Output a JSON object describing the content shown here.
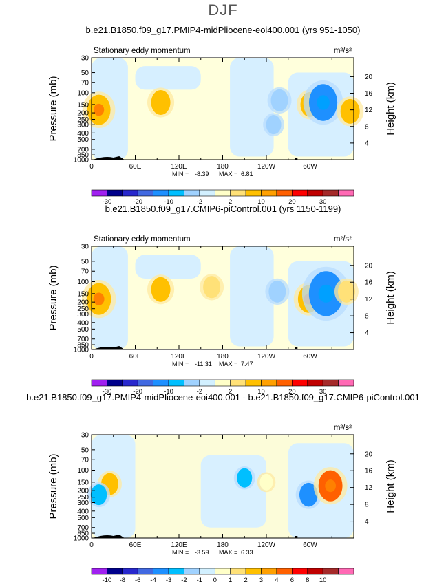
{
  "figure_title": "DJF",
  "chart_data": [
    {
      "type": "contour",
      "title": "b.e21.B1850.f09_g17.PMIP4-midPliocene-eoi400.001 (yrs 951-1050)",
      "left_label": "Stationary eddy momentum",
      "units": "m²/s²",
      "ylabel": "Pressure (mb)",
      "ylabel_right": "Height (km)",
      "x_ticks": [
        "0",
        "60E",
        "120E",
        "180",
        "120W",
        "60W"
      ],
      "pressure_ticks": [
        "30",
        "50",
        "70",
        "100",
        "150",
        "200",
        "250",
        "300",
        "400",
        "500",
        "700",
        "850",
        "1000"
      ],
      "height_ticks": [
        "20",
        "16",
        "12",
        "8",
        "4"
      ],
      "min_label": "MIN =",
      "min": "-8.39",
      "max_label": "MAX =",
      "max": "6.81",
      "colorbar_labels": [
        "-30",
        "-20",
        "-10",
        "-2",
        "2",
        "10",
        "20",
        "30"
      ],
      "colorbar_colors": [
        "#a020f0",
        "#00008b",
        "#2828cd",
        "#4169e1",
        "#1e90ff",
        "#00bfff",
        "#a0d2ff",
        "#d2f0ff",
        "#ffffc8",
        "#ffe178",
        "#ffc000",
        "#ffa000",
        "#ff6000",
        "#ff0000",
        "#c00000",
        "#a52a2a",
        "#ff69b4"
      ],
      "features": [
        {
          "lon": 10,
          "p": 180,
          "value": 6.0
        },
        {
          "lon": 95,
          "p": 140,
          "value": 4.0
        },
        {
          "lon": 258,
          "p": 130,
          "value": -3.0
        },
        {
          "lon": 300,
          "p": 150,
          "value": 4.0
        },
        {
          "lon": 318,
          "p": 140,
          "value": -8.4
        },
        {
          "lon": 355,
          "p": 190,
          "value": 4.0
        },
        {
          "lon": 250,
          "p": 300,
          "value": -2.0
        }
      ]
    },
    {
      "type": "contour",
      "title": "b.e21.B1850.f09_g17.CMIP6-piControl.001 (yrs 1150-1199)",
      "left_label": "Stationary eddy momentum",
      "units": "m²/s²",
      "ylabel": "Pressure (mb)",
      "ylabel_right": "Height (km)",
      "x_ticks": [
        "0",
        "60E",
        "120E",
        "180",
        "120W",
        "60W"
      ],
      "pressure_ticks": [
        "30",
        "50",
        "70",
        "100",
        "150",
        "200",
        "250",
        "300",
        "400",
        "500",
        "700",
        "850",
        "1000"
      ],
      "height_ticks": [
        "20",
        "16",
        "12",
        "8",
        "4"
      ],
      "min_label": "MIN =",
      "min": "-11.31",
      "max_label": "MAX =",
      "max": "7.47",
      "colorbar_labels": [
        "-30",
        "-20",
        "-10",
        "-2",
        "2",
        "10",
        "20",
        "30"
      ],
      "colorbar_colors": [
        "#a020f0",
        "#00008b",
        "#2828cd",
        "#4169e1",
        "#1e90ff",
        "#00bfff",
        "#a0d2ff",
        "#d2f0ff",
        "#ffffc8",
        "#ffe178",
        "#ffc000",
        "#ffa000",
        "#ff6000",
        "#ff0000",
        "#c00000",
        "#a52a2a",
        "#ff69b4"
      ],
      "features": [
        {
          "lon": 10,
          "p": 180,
          "value": 6.5
        },
        {
          "lon": 95,
          "p": 130,
          "value": 4.0
        },
        {
          "lon": 165,
          "p": 120,
          "value": 3.0
        },
        {
          "lon": 255,
          "p": 140,
          "value": -3.0
        },
        {
          "lon": 298,
          "p": 180,
          "value": 5.0
        },
        {
          "lon": 322,
          "p": 150,
          "value": -11.3
        },
        {
          "lon": 350,
          "p": 140,
          "value": 3.0
        }
      ]
    },
    {
      "type": "contour",
      "title": "b.e21.B1850.f09_g17.PMIP4-midPliocene-eoi400.001 - b.e21.B1850.f09_g17.CMIP6-piControl.001",
      "left_label": "",
      "units": "m²/s²",
      "ylabel": "Pressure (mb)",
      "ylabel_right": "Height (km)",
      "x_ticks": [
        "0",
        "60E",
        "120E",
        "180",
        "120W",
        "60W"
      ],
      "pressure_ticks": [
        "30",
        "50",
        "70",
        "100",
        "150",
        "200",
        "250",
        "300",
        "400",
        "500",
        "700",
        "850",
        "1000"
      ],
      "height_ticks": [
        "20",
        "16",
        "12",
        "8",
        "4"
      ],
      "min_label": "MIN =",
      "min": "-3.59",
      "max_label": "MAX =",
      "max": "6.33",
      "colorbar_labels": [
        "-10",
        "-8",
        "-6",
        "-4",
        "-3",
        "-2",
        "-1",
        "0",
        "1",
        "2",
        "3",
        "4",
        "6",
        "8",
        "10"
      ],
      "colorbar_colors": [
        "#a020f0",
        "#00008b",
        "#2828cd",
        "#4169e1",
        "#1e90ff",
        "#00bfff",
        "#a0d2ff",
        "#d2f0ff",
        "#ffffc8",
        "#ffe178",
        "#ffc000",
        "#ffa000",
        "#ff6000",
        "#ff0000",
        "#c00000",
        "#a52a2a",
        "#ff69b4"
      ],
      "features": [
        {
          "lon": 25,
          "p": 160,
          "value": 3.0
        },
        {
          "lon": 10,
          "p": 230,
          "value": -2.5
        },
        {
          "lon": 210,
          "p": 130,
          "value": -2.0
        },
        {
          "lon": 298,
          "p": 230,
          "value": -3.6
        },
        {
          "lon": 328,
          "p": 170,
          "value": 6.3
        },
        {
          "lon": 240,
          "p": 150,
          "value": 1.0
        }
      ]
    }
  ]
}
